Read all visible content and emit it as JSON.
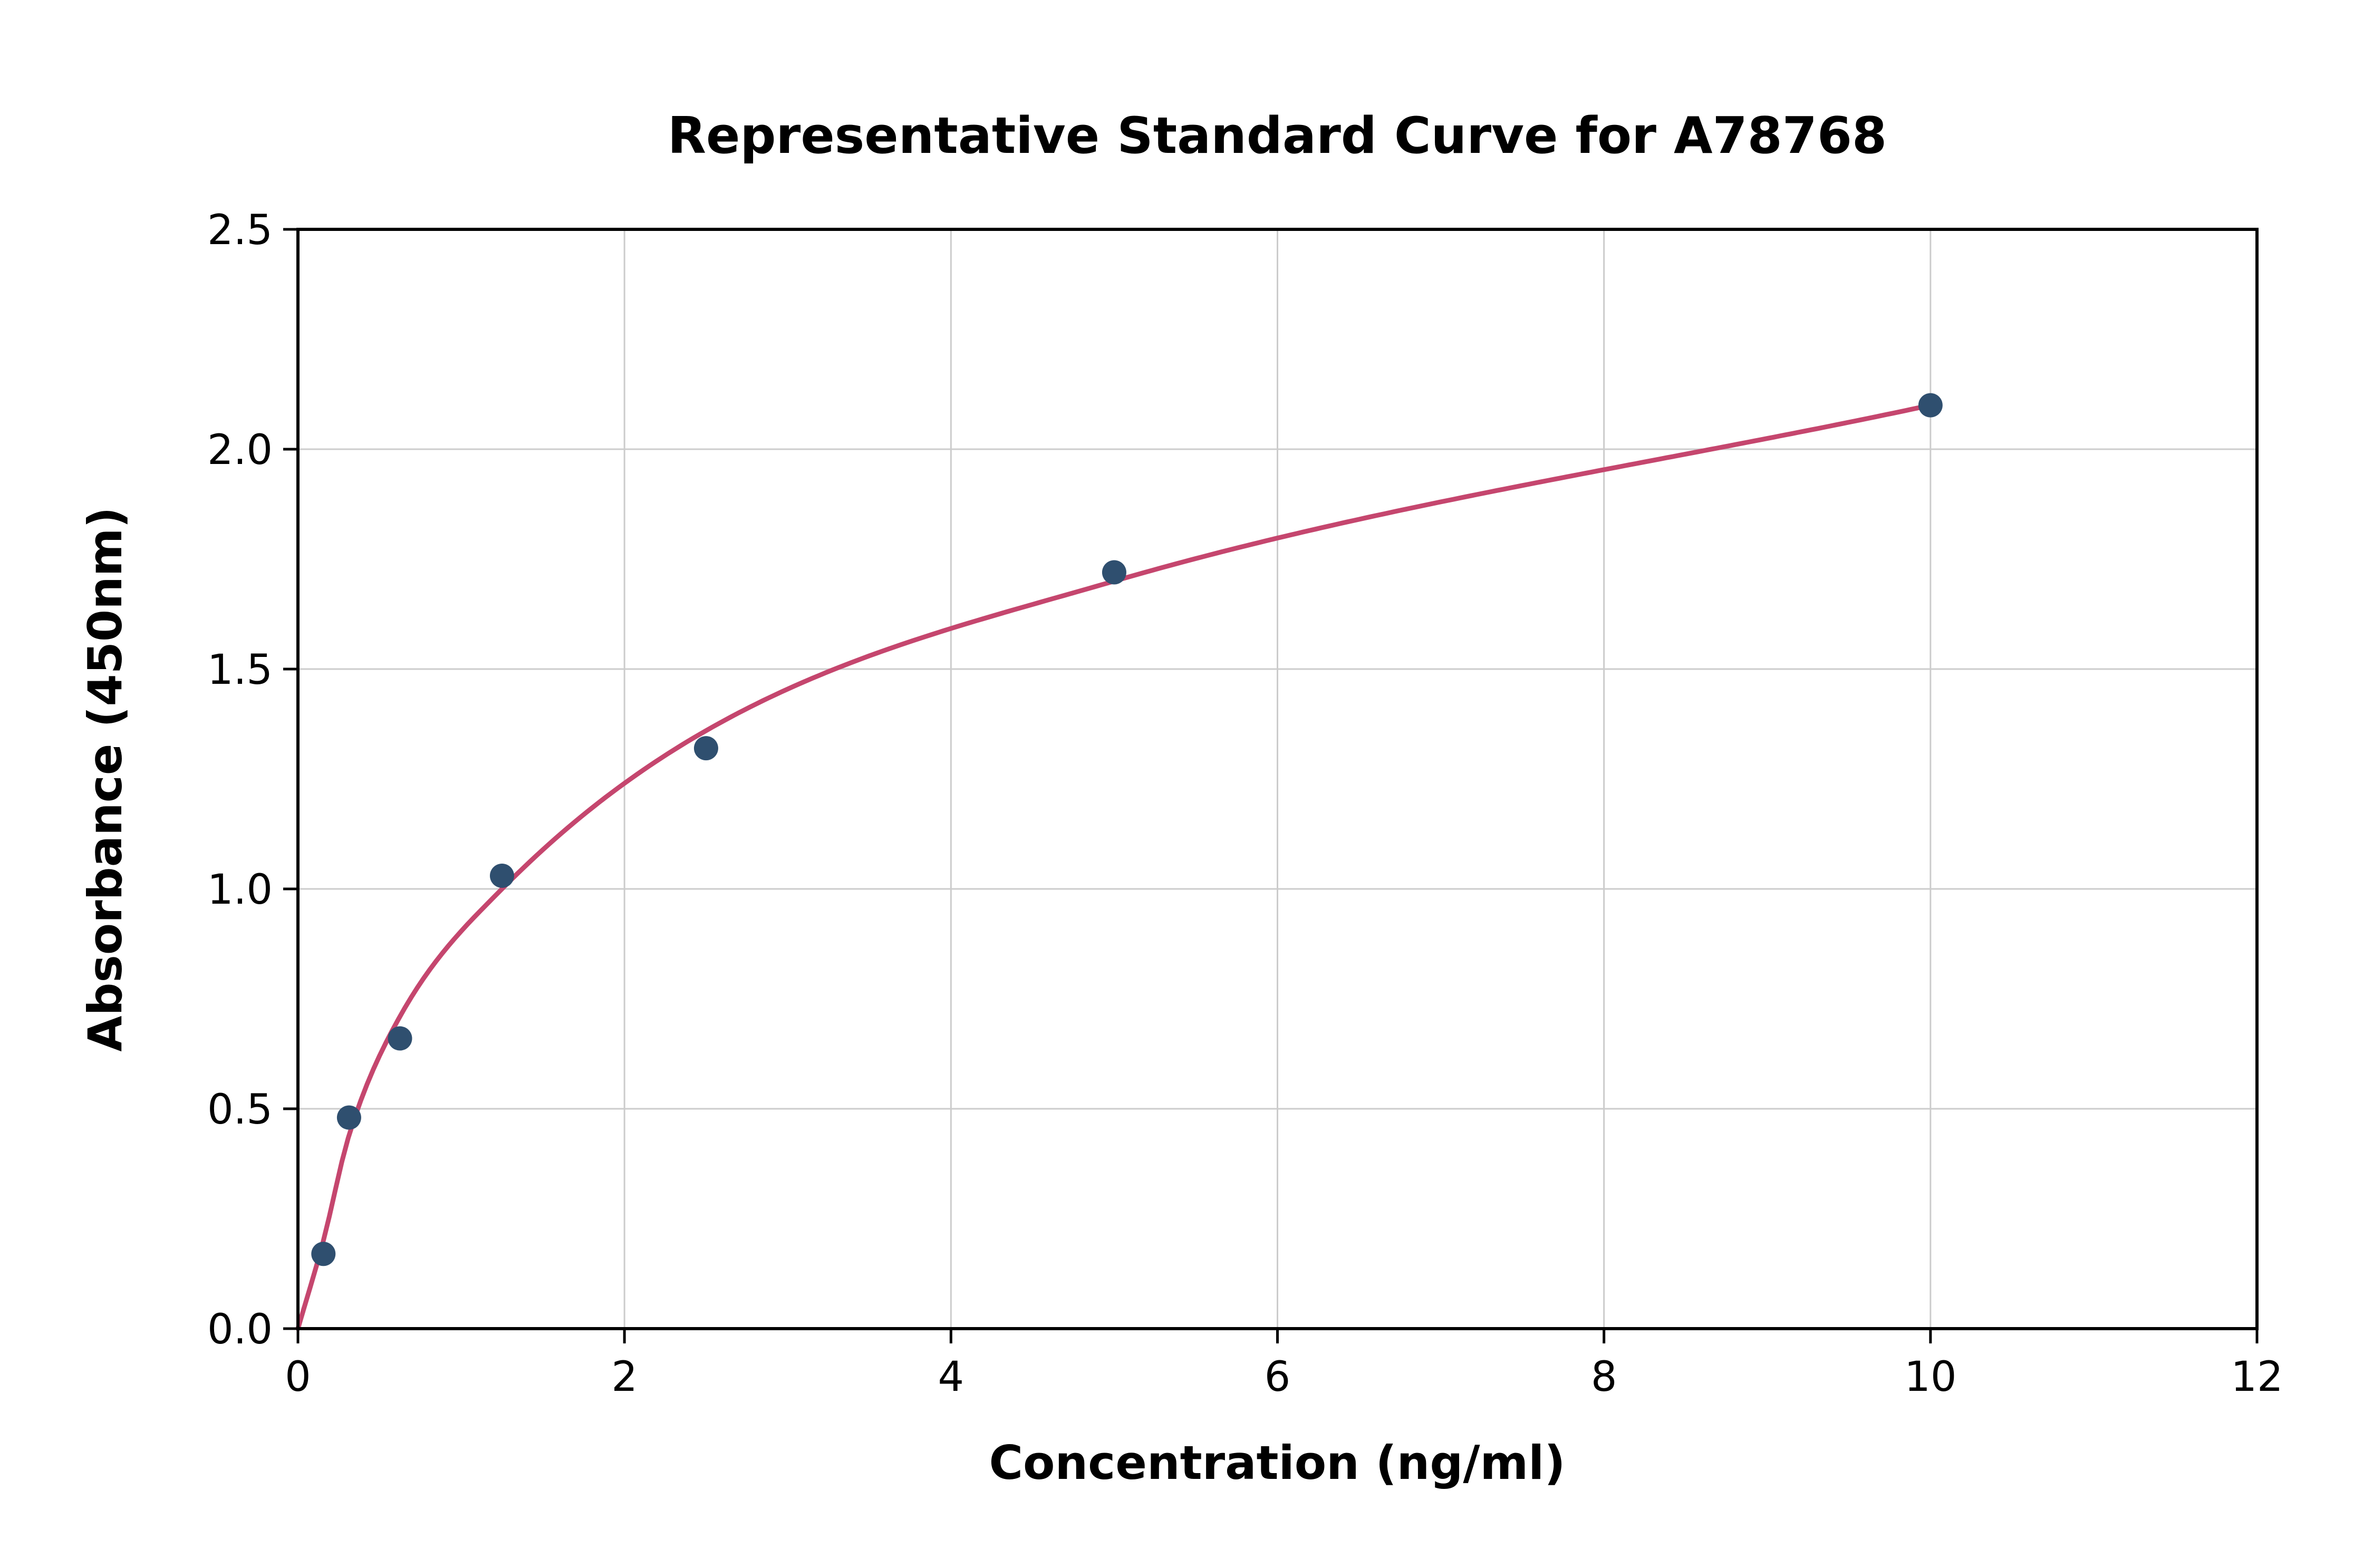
{
  "figure": {
    "background_color": "#ffffff",
    "grid_color": "#cccccc",
    "spine_color": "#000000"
  },
  "chart_data": {
    "type": "scatter",
    "title": "Representative Standard Curve for A78768",
    "xlabel": "Concentration (ng/ml)",
    "ylabel": "Absorbance (450nm)",
    "xlim": [
      0,
      12
    ],
    "ylim": [
      0,
      2.5
    ],
    "x_ticks": [
      0,
      2,
      4,
      6,
      8,
      10,
      12
    ],
    "x_tick_labels": [
      "0",
      "2",
      "4",
      "6",
      "8",
      "10",
      "12"
    ],
    "y_ticks": [
      0,
      0.5,
      1.0,
      1.5,
      2.0,
      2.5
    ],
    "y_tick_labels": [
      "0.0",
      "0.5",
      "1.0",
      "1.5",
      "2.0",
      "2.5"
    ],
    "grid": true,
    "legend_position": "none",
    "series": [
      {
        "name": "standard-points",
        "type": "scatter",
        "marker_color": "#2f4f6f",
        "x": [
          0.156,
          0.313,
          0.625,
          1.25,
          2.5,
          5,
          10
        ],
        "y": [
          0.17,
          0.48,
          0.66,
          1.03,
          1.32,
          1.72,
          2.1
        ]
      },
      {
        "name": "4pl-fit-curve",
        "type": "line",
        "line_color": "#c5466e",
        "x": [
          0,
          0.156,
          0.313,
          0.625,
          1.25,
          2.5,
          5,
          10
        ],
        "y": [
          0,
          0.2,
          0.44,
          0.71,
          1.0,
          1.36,
          1.7,
          2.1
        ]
      }
    ]
  }
}
